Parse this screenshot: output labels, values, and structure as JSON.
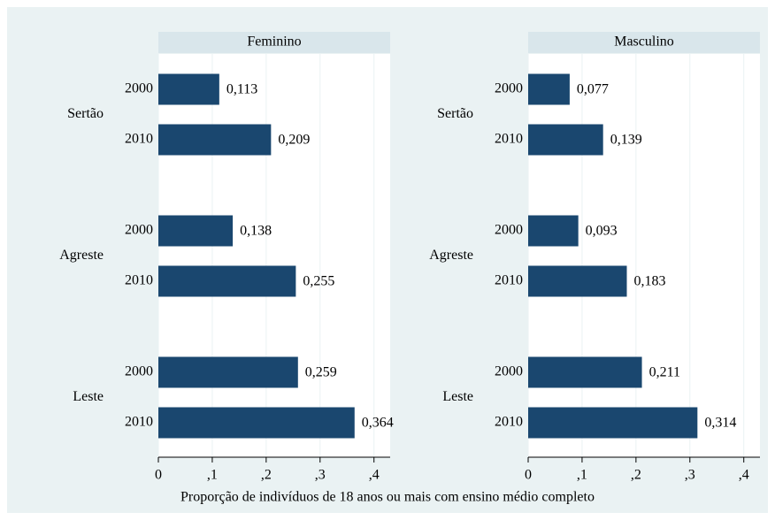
{
  "chart_data": [
    {
      "type": "bar",
      "title": "Feminino",
      "groups": [
        "Sertão",
        "Agreste",
        "Leste"
      ],
      "categories": [
        "2000",
        "2010",
        "2000",
        "2010",
        "2000",
        "2010"
      ],
      "values": [
        0.113,
        0.209,
        0.138,
        0.255,
        0.259,
        0.364
      ],
      "value_labels": [
        "0,113",
        "0,209",
        "0,138",
        "0,255",
        "0,259",
        "0,364"
      ],
      "color": "#1a476f",
      "xlim": [
        0,
        0.43
      ],
      "xticks": [
        0,
        {
          "value": 0.1,
          "label": ",1"
        },
        {
          "value": 0.2,
          "label": ",2"
        },
        {
          "value": 0.3,
          "label": ",3"
        },
        {
          "value": 0.4,
          "label": ",4"
        }
      ],
      "grid": true
    },
    {
      "type": "bar",
      "title": "Masculino",
      "groups": [
        "Sertão",
        "Agreste",
        "Leste"
      ],
      "categories": [
        "2000",
        "2010",
        "2000",
        "2010",
        "2000",
        "2010"
      ],
      "values": [
        0.077,
        0.139,
        0.093,
        0.183,
        0.211,
        0.314
      ],
      "value_labels": [
        "0,077",
        "0,139",
        "0,093",
        "0,183",
        "0,211",
        "0,314"
      ],
      "color": "#1a476f",
      "xlim": [
        0,
        0.43
      ],
      "xticks": [
        0,
        {
          "value": 0.1,
          "label": ",1"
        },
        {
          "value": 0.2,
          "label": ",2"
        },
        {
          "value": 0.3,
          "label": ",3"
        },
        {
          "value": 0.4,
          "label": ",4"
        }
      ],
      "grid": true
    }
  ],
  "xlabel": "Proporção de indivíduos de 18 anos ou mais com ensino médio completo"
}
